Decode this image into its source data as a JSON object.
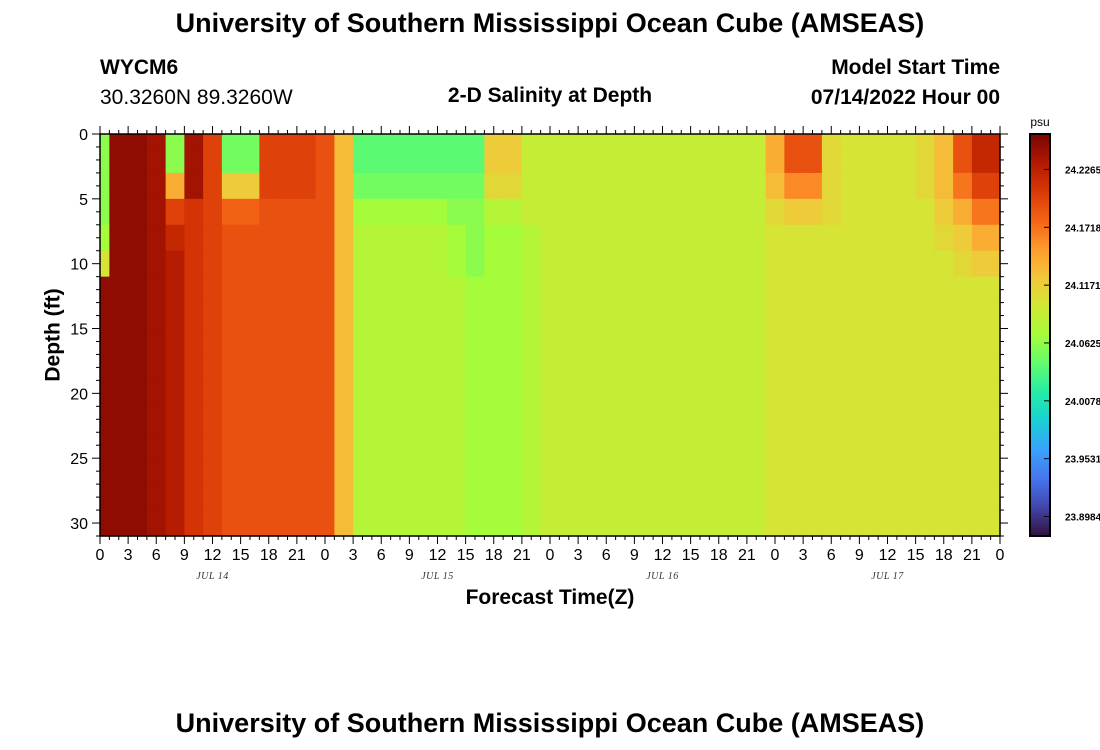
{
  "header": {
    "title": "University of Southern Mississippi Ocean Cube (AMSEAS)",
    "station_id": "WYCM6",
    "coordinates": "30.3260N  89.3260W",
    "subtitle": "2-D Salinity at Depth",
    "model_start_label": "Model Start Time",
    "model_start_value": "07/14/2022 Hour 00"
  },
  "footer": {
    "title_repeat": "University of Southern Mississippi Ocean Cube (AMSEAS)"
  },
  "colors": {
    "background": "#ffffff",
    "axis": "#000000",
    "colormap": [
      "#30123b",
      "#4145ab",
      "#4675ed",
      "#39a2fc",
      "#1bcfd4",
      "#24eca6",
      "#61fc6c",
      "#a4fc3b",
      "#d1e834",
      "#f3c63a",
      "#fe9b2d",
      "#f36315",
      "#d93806",
      "#b11901",
      "#7a0402"
    ]
  },
  "chart_data": {
    "type": "heatmap",
    "title": "2-D Salinity at Depth",
    "xlabel": "Forecast Time(Z)",
    "ylabel": "Depth (ft)",
    "x_unit": "hours from model start",
    "xlim": [
      0,
      96
    ],
    "ylim": [
      0,
      31
    ],
    "y_ticks": [
      0,
      5,
      10,
      15,
      20,
      25,
      30
    ],
    "x_tick_hours": [
      0,
      3,
      6,
      9,
      12,
      15,
      18,
      21,
      24,
      27,
      30,
      33,
      36,
      39,
      42,
      45,
      48,
      51,
      54,
      57,
      60,
      63,
      66,
      69,
      72,
      75,
      78,
      81,
      84,
      87,
      90,
      93,
      96
    ],
    "x_tick_labels": [
      "0",
      "3",
      "6",
      "9",
      "12",
      "15",
      "18",
      "21",
      "0",
      "3",
      "6",
      "9",
      "12",
      "15",
      "18",
      "21",
      "0",
      "3",
      "6",
      "9",
      "12",
      "15",
      "18",
      "21",
      "0",
      "3",
      "6",
      "9",
      "12",
      "15",
      "18",
      "21",
      "0"
    ],
    "date_labels": [
      {
        "label": "JUL 14",
        "hour": 12
      },
      {
        "label": "JUL 15",
        "hour": 36
      },
      {
        "label": "JUL 16",
        "hour": 60
      },
      {
        "label": "JUL 17",
        "hour": 84
      }
    ],
    "colorbar": {
      "unit": "psu",
      "min": 23.88,
      "max": 24.26,
      "tick_values": [
        24.2265,
        24.1718,
        24.1171,
        24.0625,
        24.0078,
        23.9531,
        23.8984
      ],
      "tick_labels": [
        "24.2265",
        "24.1718",
        "24.1171",
        "24.0625",
        "24.0078",
        "23.9531",
        "23.8984"
      ]
    },
    "time_hours": [
      0,
      2,
      4,
      6,
      8,
      10,
      12,
      14,
      16,
      18,
      20,
      22,
      24,
      26,
      28,
      30,
      32,
      34,
      36,
      38,
      40,
      42,
      44,
      46,
      48,
      50,
      52,
      54,
      56,
      58,
      60,
      62,
      64,
      66,
      68,
      70,
      72,
      74,
      76,
      78,
      80,
      82,
      84,
      86,
      88,
      90,
      92,
      94,
      96
    ],
    "depths_ft": [
      0,
      2,
      4,
      6,
      8,
      10,
      12,
      14,
      16,
      18,
      20,
      22,
      24,
      26,
      28,
      30
    ],
    "salinity_psu": [
      [
        24.06,
        24.25,
        24.25,
        24.24,
        24.06,
        24.24,
        24.2,
        24.05,
        24.05,
        24.2,
        24.2,
        24.2,
        24.19,
        24.13,
        24.04,
        24.04,
        24.04,
        24.04,
        24.04,
        24.04,
        24.04,
        24.12,
        24.12,
        24.09,
        24.09,
        24.09,
        24.09,
        24.09,
        24.09,
        24.09,
        24.09,
        24.09,
        24.09,
        24.09,
        24.09,
        24.09,
        24.14,
        24.19,
        24.19,
        24.11,
        24.1,
        24.1,
        24.1,
        24.1,
        24.11,
        24.13,
        24.19,
        24.22,
        24.22
      ],
      [
        24.06,
        24.25,
        24.25,
        24.24,
        24.06,
        24.24,
        24.2,
        24.05,
        24.05,
        24.2,
        24.2,
        24.2,
        24.19,
        24.13,
        24.04,
        24.04,
        24.04,
        24.04,
        24.04,
        24.04,
        24.04,
        24.12,
        24.12,
        24.09,
        24.09,
        24.09,
        24.09,
        24.09,
        24.09,
        24.09,
        24.09,
        24.09,
        24.09,
        24.09,
        24.09,
        24.09,
        24.14,
        24.19,
        24.19,
        24.11,
        24.1,
        24.1,
        24.1,
        24.1,
        24.11,
        24.13,
        24.19,
        24.22,
        24.22
      ],
      [
        24.06,
        24.25,
        24.25,
        24.24,
        24.14,
        24.24,
        24.2,
        24.12,
        24.12,
        24.2,
        24.2,
        24.2,
        24.19,
        24.13,
        24.05,
        24.05,
        24.05,
        24.05,
        24.05,
        24.05,
        24.05,
        24.11,
        24.11,
        24.09,
        24.09,
        24.09,
        24.09,
        24.09,
        24.09,
        24.09,
        24.09,
        24.09,
        24.09,
        24.09,
        24.09,
        24.09,
        24.13,
        24.16,
        24.16,
        24.11,
        24.1,
        24.1,
        24.1,
        24.1,
        24.11,
        24.13,
        24.17,
        24.2,
        24.2
      ],
      [
        24.06,
        24.25,
        24.25,
        24.24,
        24.2,
        24.21,
        24.2,
        24.18,
        24.18,
        24.19,
        24.19,
        24.19,
        24.19,
        24.13,
        24.07,
        24.07,
        24.07,
        24.07,
        24.07,
        24.06,
        24.06,
        24.08,
        24.08,
        24.09,
        24.09,
        24.09,
        24.09,
        24.09,
        24.09,
        24.09,
        24.09,
        24.09,
        24.09,
        24.09,
        24.09,
        24.09,
        24.11,
        24.12,
        24.12,
        24.11,
        24.1,
        24.1,
        24.1,
        24.1,
        24.1,
        24.12,
        24.14,
        24.17,
        24.17
      ],
      [
        24.07,
        24.25,
        24.25,
        24.24,
        24.22,
        24.21,
        24.2,
        24.19,
        24.19,
        24.19,
        24.19,
        24.19,
        24.19,
        24.13,
        24.08,
        24.08,
        24.08,
        24.08,
        24.08,
        24.07,
        24.06,
        24.07,
        24.07,
        24.08,
        24.09,
        24.09,
        24.09,
        24.09,
        24.09,
        24.09,
        24.09,
        24.09,
        24.09,
        24.09,
        24.09,
        24.09,
        24.1,
        24.1,
        24.1,
        24.1,
        24.1,
        24.1,
        24.1,
        24.1,
        24.1,
        24.11,
        24.12,
        24.14,
        24.14
      ],
      [
        24.1,
        24.25,
        24.25,
        24.24,
        24.23,
        24.21,
        24.2,
        24.19,
        24.19,
        24.19,
        24.19,
        24.19,
        24.19,
        24.13,
        24.08,
        24.08,
        24.08,
        24.08,
        24.08,
        24.07,
        24.06,
        24.07,
        24.07,
        24.08,
        24.09,
        24.09,
        24.09,
        24.09,
        24.09,
        24.09,
        24.09,
        24.09,
        24.09,
        24.09,
        24.09,
        24.09,
        24.1,
        24.1,
        24.1,
        24.1,
        24.1,
        24.1,
        24.1,
        24.1,
        24.1,
        24.1,
        24.11,
        24.12,
        24.12
      ],
      [
        24.25,
        24.25,
        24.25,
        24.24,
        24.23,
        24.21,
        24.2,
        24.19,
        24.19,
        24.19,
        24.19,
        24.19,
        24.19,
        24.13,
        24.08,
        24.08,
        24.08,
        24.08,
        24.08,
        24.08,
        24.07,
        24.07,
        24.07,
        24.08,
        24.09,
        24.09,
        24.09,
        24.09,
        24.09,
        24.09,
        24.09,
        24.09,
        24.09,
        24.09,
        24.09,
        24.09,
        24.1,
        24.1,
        24.1,
        24.1,
        24.1,
        24.1,
        24.1,
        24.1,
        24.1,
        24.1,
        24.1,
        24.1,
        24.1
      ],
      [
        24.25,
        24.25,
        24.25,
        24.24,
        24.23,
        24.21,
        24.2,
        24.19,
        24.19,
        24.19,
        24.19,
        24.19,
        24.19,
        24.13,
        24.08,
        24.08,
        24.08,
        24.08,
        24.08,
        24.08,
        24.07,
        24.07,
        24.07,
        24.08,
        24.09,
        24.09,
        24.09,
        24.09,
        24.09,
        24.09,
        24.09,
        24.09,
        24.09,
        24.09,
        24.09,
        24.09,
        24.1,
        24.1,
        24.1,
        24.1,
        24.1,
        24.1,
        24.1,
        24.1,
        24.1,
        24.1,
        24.1,
        24.1,
        24.1
      ],
      [
        24.25,
        24.25,
        24.25,
        24.24,
        24.23,
        24.21,
        24.2,
        24.19,
        24.19,
        24.19,
        24.19,
        24.19,
        24.19,
        24.13,
        24.08,
        24.08,
        24.08,
        24.08,
        24.08,
        24.08,
        24.07,
        24.07,
        24.07,
        24.08,
        24.09,
        24.09,
        24.09,
        24.09,
        24.09,
        24.09,
        24.09,
        24.09,
        24.09,
        24.09,
        24.09,
        24.09,
        24.1,
        24.1,
        24.1,
        24.1,
        24.1,
        24.1,
        24.1,
        24.1,
        24.1,
        24.1,
        24.1,
        24.1,
        24.1
      ],
      [
        24.25,
        24.25,
        24.25,
        24.24,
        24.23,
        24.21,
        24.2,
        24.19,
        24.19,
        24.19,
        24.19,
        24.19,
        24.19,
        24.13,
        24.08,
        24.08,
        24.08,
        24.08,
        24.08,
        24.08,
        24.07,
        24.07,
        24.07,
        24.08,
        24.09,
        24.09,
        24.09,
        24.09,
        24.09,
        24.09,
        24.09,
        24.09,
        24.09,
        24.09,
        24.09,
        24.09,
        24.1,
        24.1,
        24.1,
        24.1,
        24.1,
        24.1,
        24.1,
        24.1,
        24.1,
        24.1,
        24.1,
        24.1,
        24.1
      ],
      [
        24.25,
        24.25,
        24.25,
        24.24,
        24.23,
        24.21,
        24.2,
        24.19,
        24.19,
        24.19,
        24.19,
        24.19,
        24.19,
        24.13,
        24.08,
        24.08,
        24.08,
        24.08,
        24.08,
        24.08,
        24.07,
        24.07,
        24.07,
        24.08,
        24.09,
        24.09,
        24.09,
        24.09,
        24.09,
        24.09,
        24.09,
        24.09,
        24.09,
        24.09,
        24.09,
        24.09,
        24.1,
        24.1,
        24.1,
        24.1,
        24.1,
        24.1,
        24.1,
        24.1,
        24.1,
        24.1,
        24.1,
        24.1,
        24.1
      ],
      [
        24.25,
        24.25,
        24.25,
        24.24,
        24.23,
        24.21,
        24.2,
        24.19,
        24.19,
        24.19,
        24.19,
        24.19,
        24.19,
        24.13,
        24.08,
        24.08,
        24.08,
        24.08,
        24.08,
        24.08,
        24.07,
        24.07,
        24.07,
        24.08,
        24.09,
        24.09,
        24.09,
        24.09,
        24.09,
        24.09,
        24.09,
        24.09,
        24.09,
        24.09,
        24.09,
        24.09,
        24.1,
        24.1,
        24.1,
        24.1,
        24.1,
        24.1,
        24.1,
        24.1,
        24.1,
        24.1,
        24.1,
        24.1,
        24.1
      ],
      [
        24.25,
        24.25,
        24.25,
        24.24,
        24.23,
        24.21,
        24.2,
        24.19,
        24.19,
        24.19,
        24.19,
        24.19,
        24.19,
        24.13,
        24.08,
        24.08,
        24.08,
        24.08,
        24.08,
        24.08,
        24.07,
        24.07,
        24.07,
        24.08,
        24.09,
        24.09,
        24.09,
        24.09,
        24.09,
        24.09,
        24.09,
        24.09,
        24.09,
        24.09,
        24.09,
        24.09,
        24.1,
        24.1,
        24.1,
        24.1,
        24.1,
        24.1,
        24.1,
        24.1,
        24.1,
        24.1,
        24.1,
        24.1,
        24.1
      ],
      [
        24.25,
        24.25,
        24.25,
        24.24,
        24.23,
        24.21,
        24.2,
        24.19,
        24.19,
        24.19,
        24.19,
        24.19,
        24.19,
        24.13,
        24.08,
        24.08,
        24.08,
        24.08,
        24.08,
        24.08,
        24.07,
        24.07,
        24.07,
        24.08,
        24.09,
        24.09,
        24.09,
        24.09,
        24.09,
        24.09,
        24.09,
        24.09,
        24.09,
        24.09,
        24.09,
        24.09,
        24.1,
        24.1,
        24.1,
        24.1,
        24.1,
        24.1,
        24.1,
        24.1,
        24.1,
        24.1,
        24.1,
        24.1,
        24.1
      ],
      [
        24.25,
        24.25,
        24.25,
        24.24,
        24.23,
        24.21,
        24.2,
        24.19,
        24.19,
        24.19,
        24.19,
        24.19,
        24.19,
        24.13,
        24.08,
        24.08,
        24.08,
        24.08,
        24.08,
        24.08,
        24.07,
        24.07,
        24.07,
        24.08,
        24.09,
        24.09,
        24.09,
        24.09,
        24.09,
        24.09,
        24.09,
        24.09,
        24.09,
        24.09,
        24.09,
        24.09,
        24.1,
        24.1,
        24.1,
        24.1,
        24.1,
        24.1,
        24.1,
        24.1,
        24.1,
        24.1,
        24.1,
        24.1,
        24.1
      ],
      [
        24.25,
        24.25,
        24.25,
        24.24,
        24.23,
        24.21,
        24.2,
        24.19,
        24.19,
        24.19,
        24.19,
        24.19,
        24.19,
        24.13,
        24.08,
        24.08,
        24.08,
        24.08,
        24.08,
        24.08,
        24.07,
        24.07,
        24.07,
        24.08,
        24.09,
        24.09,
        24.09,
        24.09,
        24.09,
        24.09,
        24.09,
        24.09,
        24.09,
        24.09,
        24.09,
        24.09,
        24.1,
        24.1,
        24.1,
        24.1,
        24.1,
        24.1,
        24.1,
        24.1,
        24.1,
        24.1,
        24.1,
        24.1,
        24.1
      ]
    ]
  }
}
